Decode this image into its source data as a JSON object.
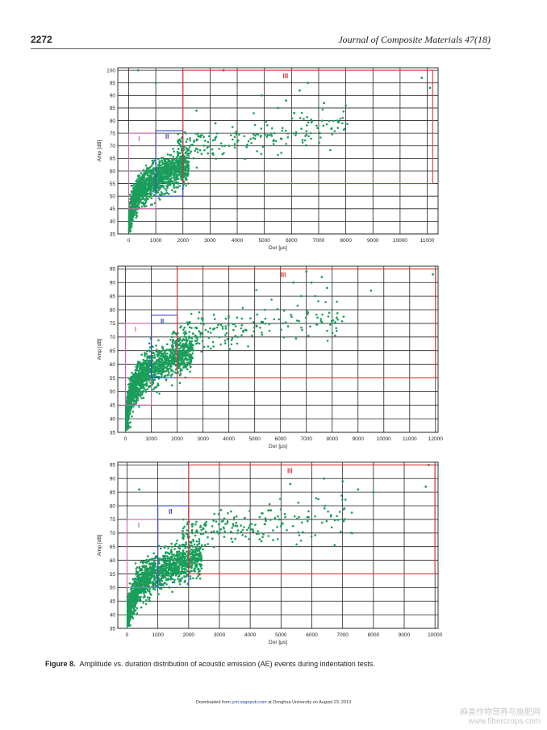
{
  "header": {
    "page_number": "2272",
    "journal": "Journal of Composite Materials 47(18)"
  },
  "charts": [
    {
      "type": "scatter",
      "xlabel": "Dur [µs]",
      "ylabel": "Amp [dB]",
      "xlim": [
        -400,
        11400
      ],
      "ylim": [
        35,
        101
      ],
      "xticks": [
        0,
        1000,
        2000,
        3000,
        4000,
        5000,
        6000,
        7000,
        8000,
        9000,
        10000,
        11000
      ],
      "yticks": [
        35,
        40,
        45,
        50,
        55,
        60,
        65,
        70,
        75,
        80,
        85,
        90,
        95,
        100
      ],
      "regions": [
        {
          "label": "I",
          "color": "#cc66aa",
          "x0": 0,
          "x1": 1000,
          "y0": 45,
          "y1": 75
        },
        {
          "label": "II",
          "color": "#3344cc",
          "x0": 1000,
          "x1": 2000,
          "y0": 50,
          "y1": 76
        },
        {
          "label": "III",
          "color": "#dd3333",
          "x0": 2000,
          "x1": 11200,
          "y0": 55,
          "y1": 100
        }
      ],
      "dense_trend": {
        "a": 17,
        "b": 12,
        "xmax": 2200
      },
      "outliers": [
        [
          350,
          100
        ],
        [
          1000,
          95
        ],
        [
          3500,
          100
        ],
        [
          4900,
          90
        ],
        [
          5500,
          85
        ],
        [
          5800,
          88
        ],
        [
          6100,
          83
        ],
        [
          6300,
          92
        ],
        [
          6600,
          95
        ],
        [
          7200,
          87
        ],
        [
          8000,
          86
        ],
        [
          10800,
          97
        ],
        [
          11100,
          93
        ],
        [
          2500,
          84
        ],
        [
          3200,
          79
        ]
      ]
    },
    {
      "type": "scatter",
      "xlabel": "Dur [µs]",
      "ylabel": "Amp [dB]",
      "xlim": [
        -300,
        12100
      ],
      "ylim": [
        35,
        96
      ],
      "xticks": [
        0,
        1000,
        2000,
        3000,
        4000,
        5000,
        6000,
        7000,
        8000,
        9000,
        10000,
        11000,
        12000
      ],
      "yticks": [
        35,
        40,
        45,
        50,
        55,
        60,
        65,
        70,
        75,
        80,
        85,
        90,
        95
      ],
      "regions": [
        {
          "label": "I",
          "color": "#cc66aa",
          "x0": 0,
          "x1": 1000,
          "y0": 45,
          "y1": 75
        },
        {
          "label": "II",
          "color": "#3344cc",
          "x0": 1000,
          "x1": 2000,
          "y0": 55,
          "y1": 78
        },
        {
          "label": "III",
          "color": "#dd3333",
          "x0": 2000,
          "x1": 12000,
          "y0": 55,
          "y1": 95
        }
      ],
      "dense_trend": {
        "a": 18,
        "b": 11,
        "xmax": 2600
      },
      "outliers": [
        [
          6500,
          90
        ],
        [
          7200,
          90
        ],
        [
          7600,
          92
        ],
        [
          7800,
          88
        ],
        [
          8000,
          80
        ],
        [
          9500,
          87
        ],
        [
          11900,
          93
        ],
        [
          7000,
          94
        ],
        [
          6800,
          85
        ]
      ]
    },
    {
      "type": "scatter",
      "xlabel": "Dur [µs]",
      "ylabel": "Amp [dB]",
      "xlim": [
        -300,
        10100
      ],
      "ylim": [
        35,
        96
      ],
      "xticks": [
        0,
        1000,
        2000,
        3000,
        4000,
        5000,
        6000,
        7000,
        8000,
        9000,
        10000
      ],
      "yticks": [
        35,
        40,
        45,
        50,
        55,
        60,
        65,
        70,
        75,
        80,
        85,
        90,
        95
      ],
      "regions": [
        {
          "label": "I",
          "color": "#cc66aa",
          "x0": 0,
          "x1": 1000,
          "y0": 50,
          "y1": 75
        },
        {
          "label": "II",
          "color": "#3344cc",
          "x0": 1000,
          "x1": 2000,
          "y0": 50,
          "y1": 80
        },
        {
          "label": "III",
          "color": "#dd3333",
          "x0": 2000,
          "x1": 10000,
          "y0": 55,
          "y1": 95
        }
      ],
      "dense_trend": {
        "a": 16,
        "b": 12,
        "xmax": 2400
      },
      "outliers": [
        [
          400,
          86
        ],
        [
          6400,
          90
        ],
        [
          7000,
          89
        ],
        [
          7500,
          86
        ],
        [
          8000,
          85
        ],
        [
          9800,
          95
        ],
        [
          9700,
          87
        ],
        [
          5300,
          88
        ]
      ]
    }
  ],
  "caption": {
    "label": "Figure 8.",
    "text": "Amplitude vs. duration distribution of acoustic emission (AE) events during indentation tests."
  },
  "footer": {
    "pre": "Downloaded from",
    "link": "jcm.sagepub.com",
    "post": "at Donghua University on August 23, 2013"
  },
  "watermark": {
    "cn": "麻类作物营养与施肥网",
    "url": "www.fibercrops.com"
  },
  "colors": {
    "point": "#1a9e5a",
    "grid": "#222222",
    "border": "#333333"
  }
}
